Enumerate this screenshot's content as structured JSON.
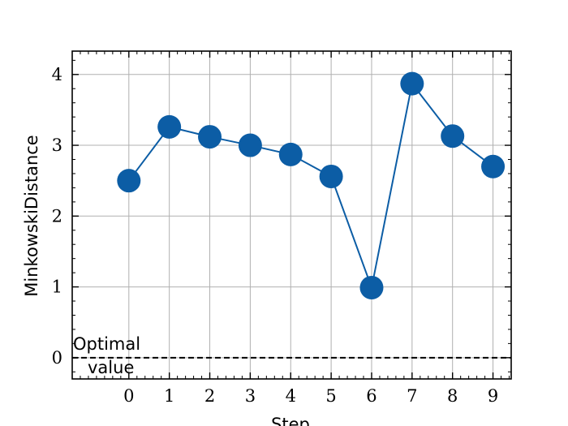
{
  "chart_data": {
    "type": "line",
    "x": [
      0,
      1,
      2,
      3,
      4,
      5,
      6,
      7,
      8,
      9
    ],
    "series": [
      {
        "values": [
          2.5,
          3.26,
          3.12,
          3.0,
          2.87,
          2.56,
          0.99,
          3.87,
          3.13,
          2.7
        ]
      }
    ],
    "xlabel": "Step",
    "ylabel": "MinkowskiDistance",
    "xlim": [
      -1.4,
      9.45
    ],
    "ylim": [
      -0.3,
      4.33
    ],
    "xticks": [
      0,
      1,
      2,
      3,
      4,
      5,
      6,
      7,
      8,
      9
    ],
    "yticks": [
      0,
      1,
      2,
      3,
      4
    ],
    "grid": true,
    "reference_line": {
      "y": 0,
      "style": "dashed",
      "label": "Optimal value"
    },
    "colors": {
      "series": "#0c5da5",
      "reference": "#000000",
      "grid": "#b0b0b0"
    }
  }
}
